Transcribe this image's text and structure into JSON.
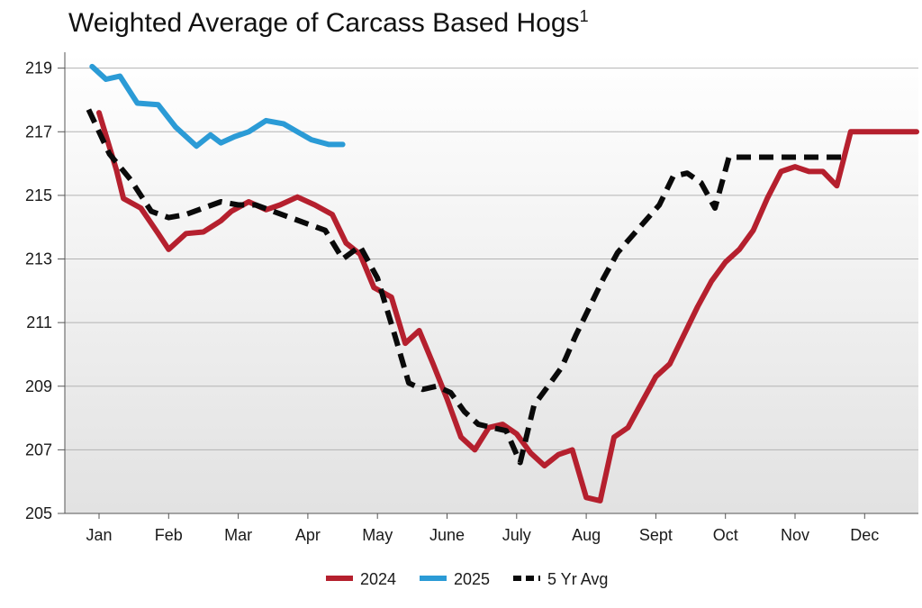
{
  "chart_data": {
    "type": "line",
    "title": "Weighted Average of Carcass Based Hogs",
    "title_superscript": "1",
    "xlabel": "",
    "ylabel": "",
    "ylim": [
      205,
      219.5
    ],
    "yticks": [
      205,
      207,
      209,
      211,
      213,
      215,
      217,
      219
    ],
    "months": [
      "Jan",
      "Feb",
      "Mar",
      "Apr",
      "May",
      "June",
      "July",
      "Aug",
      "Sept",
      "Oct",
      "Nov",
      "Dec"
    ],
    "grid": true,
    "legend_position": "bottom",
    "series": [
      {
        "name": "2024",
        "color": "#b5202e",
        "dash": false,
        "x": [
          0.0,
          0.25,
          0.35,
          0.6,
          0.85,
          1.0,
          1.25,
          1.5,
          1.75,
          1.9,
          2.15,
          2.4,
          2.6,
          2.85,
          3.1,
          3.35,
          3.55,
          3.75,
          3.95,
          4.2,
          4.4,
          4.6,
          4.8,
          5.0,
          5.2,
          5.4,
          5.6,
          5.8,
          6.0,
          6.2,
          6.4,
          6.6,
          6.8,
          7.0,
          7.2,
          7.4,
          7.6,
          7.8,
          8.0,
          8.2,
          8.4,
          8.6,
          8.8,
          9.0,
          9.2,
          9.4,
          9.6,
          9.8,
          10.0,
          10.2,
          10.4,
          10.6,
          10.8,
          11.0,
          11.2,
          11.4,
          11.55,
          11.75
        ],
        "values": [
          217.6,
          215.8,
          214.9,
          214.6,
          213.8,
          213.3,
          213.8,
          213.85,
          214.2,
          214.5,
          214.8,
          214.55,
          214.7,
          214.95,
          214.7,
          214.4,
          213.5,
          213.15,
          212.1,
          211.8,
          210.35,
          210.75,
          209.7,
          208.6,
          207.4,
          207.0,
          207.7,
          207.8,
          207.5,
          206.9,
          206.5,
          206.85,
          207.0,
          205.5,
          205.4,
          207.4,
          207.7,
          208.5,
          209.3,
          209.7,
          210.6,
          211.5,
          212.3,
          212.9,
          213.3,
          213.9,
          214.9,
          215.75,
          215.9,
          215.75,
          215.75,
          215.3,
          217.0,
          217.0,
          217.0,
          217.0,
          217.0,
          217.0
        ]
      },
      {
        "name": "2025",
        "color": "#2b9bd6",
        "dash": false,
        "x": [
          -0.1,
          0.1,
          0.3,
          0.55,
          0.85,
          1.1,
          1.4,
          1.6,
          1.75,
          1.95,
          2.15,
          2.4,
          2.65,
          2.85,
          3.05,
          3.3,
          3.5
        ],
        "values": [
          219.05,
          218.65,
          218.75,
          217.9,
          217.85,
          217.15,
          216.55,
          216.9,
          216.65,
          216.85,
          217.0,
          217.35,
          217.25,
          217.0,
          216.75,
          216.6,
          216.6
        ]
      },
      {
        "name": "5 Yr Avg",
        "color": "#0a0a0a",
        "dash": true,
        "x": [
          -0.15,
          0.15,
          0.45,
          0.75,
          1.0,
          1.25,
          1.5,
          1.75,
          2.0,
          2.25,
          2.5,
          2.75,
          3.0,
          3.25,
          3.5,
          3.75,
          4.0,
          4.25,
          4.45,
          4.65,
          4.85,
          5.05,
          5.25,
          5.45,
          5.65,
          5.85,
          6.05,
          6.25,
          6.45,
          6.65,
          6.85,
          7.05,
          7.25,
          7.45,
          7.65,
          7.85,
          8.05,
          8.25,
          8.45,
          8.65,
          8.85,
          9.05,
          9.25,
          9.45,
          9.65,
          9.85,
          10.05,
          10.25,
          10.45,
          10.6,
          10.75
        ],
        "values": [
          217.7,
          216.3,
          215.5,
          214.5,
          214.3,
          214.4,
          214.6,
          214.8,
          214.7,
          214.7,
          214.5,
          214.3,
          214.1,
          213.9,
          213.0,
          213.4,
          212.4,
          210.6,
          209.1,
          208.9,
          209.0,
          208.8,
          208.2,
          207.8,
          207.7,
          207.6,
          206.6,
          208.4,
          209.0,
          209.6,
          210.6,
          211.5,
          212.4,
          213.2,
          213.7,
          214.2,
          214.7,
          215.6,
          215.7,
          215.4,
          214.6,
          216.2,
          216.2,
          216.2,
          216.2,
          216.2,
          216.2,
          216.2,
          216.2,
          216.2,
          216.2
        ]
      }
    ]
  }
}
